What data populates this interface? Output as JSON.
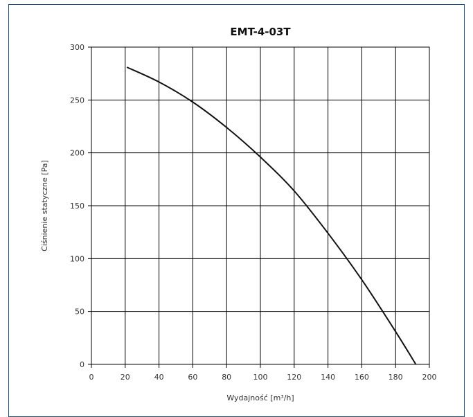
{
  "chart_data": {
    "type": "line",
    "title": "EMT-4-03T",
    "xlabel": "Wydajność [m³/h]",
    "ylabel": "Ciśnienie statyczne [Pa]",
    "xlim": [
      0,
      200
    ],
    "ylim": [
      0,
      300
    ],
    "xticks": [
      0,
      20,
      40,
      60,
      80,
      100,
      120,
      140,
      160,
      180,
      200
    ],
    "yticks": [
      0,
      50,
      100,
      150,
      200,
      250,
      300
    ],
    "grid": true,
    "series": [
      {
        "x": [
          21,
          40,
          60,
          80,
          100,
          120,
          140,
          160,
          180,
          192
        ],
        "y": [
          281,
          267,
          248,
          224,
          196,
          164,
          124,
          80,
          31,
          0
        ]
      }
    ],
    "colors": {
      "line": "#111111",
      "grid": "#000000",
      "frame": "#1f4e79"
    }
  }
}
